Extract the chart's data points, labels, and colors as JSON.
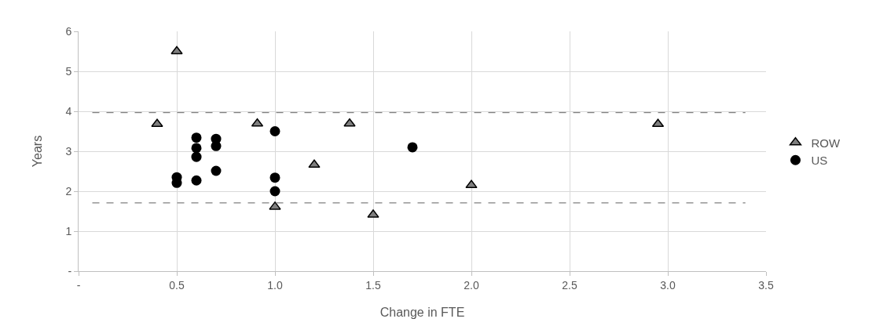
{
  "chart_data": {
    "type": "scatter",
    "xlabel": "Change in FTE",
    "ylabel": "Years",
    "series": [
      {
        "name": "ROW",
        "color": "#7f7f7f",
        "marker": "triangle",
        "x": [
          0.5,
          0.4,
          0.91,
          1.38,
          1.2,
          1.0,
          1.5,
          2.0,
          2.95
        ],
        "values": [
          5.5,
          3.68,
          3.69,
          3.69,
          2.66,
          1.61,
          1.41,
          2.15,
          3.68
        ]
      },
      {
        "name": "US",
        "color": "#000000",
        "marker": "circle",
        "x": [
          0.6,
          0.6,
          0.6,
          0.7,
          0.7,
          0.7,
          0.5,
          0.5,
          0.6,
          1.0,
          1.0,
          1.0,
          1.7
        ],
        "values": [
          3.34,
          3.08,
          2.86,
          3.31,
          3.13,
          2.51,
          2.35,
          2.21,
          2.27,
          3.5,
          2.34,
          2.0,
          3.1
        ]
      }
    ],
    "xlim": [
      0,
      3.5
    ],
    "xticks": [
      {
        "value": 0,
        "label": "-"
      },
      0.5,
      {
        "value": 1,
        "label": "1.0"
      },
      1.5,
      {
        "value": 2,
        "label": "2.0"
      },
      2.5,
      {
        "value": 3,
        "label": "3.0"
      },
      3.5
    ],
    "ylim": [
      0,
      6
    ],
    "yticks": [
      {
        "value": 0,
        "label": "-"
      },
      1,
      2,
      3,
      4,
      5,
      6
    ],
    "grid": true,
    "legend": "right",
    "ref_lines": [
      {
        "axis": "y",
        "value": 3.97,
        "color": "#808080",
        "line_style": "dashed"
      },
      {
        "axis": "y",
        "value": 1.71,
        "color": "#808080",
        "line_style": "dashed"
      }
    ]
  }
}
